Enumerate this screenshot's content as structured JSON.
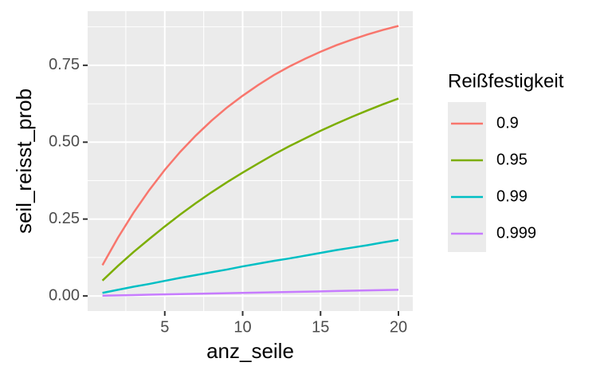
{
  "chart_data": {
    "type": "line",
    "x_label": "anz_seile",
    "y_label": "seil_reisst_prob",
    "x": [
      1,
      2,
      3,
      4,
      5,
      6,
      7,
      8,
      9,
      10,
      11,
      12,
      13,
      14,
      15,
      16,
      17,
      18,
      19,
      20
    ],
    "series": [
      {
        "name": "0.9",
        "color": "#F8766D",
        "values": [
          0.1,
          0.19,
          0.271,
          0.344,
          0.41,
          0.469,
          0.522,
          0.57,
          0.613,
          0.651,
          0.686,
          0.718,
          0.746,
          0.771,
          0.794,
          0.815,
          0.833,
          0.85,
          0.865,
          0.878
        ]
      },
      {
        "name": "0.95",
        "color": "#7CAE00",
        "values": [
          0.05,
          0.098,
          0.143,
          0.185,
          0.226,
          0.265,
          0.302,
          0.337,
          0.37,
          0.401,
          0.431,
          0.46,
          0.487,
          0.512,
          0.537,
          0.56,
          0.582,
          0.603,
          0.623,
          0.642
        ]
      },
      {
        "name": "0.99",
        "color": "#00BFC4",
        "values": [
          0.01,
          0.02,
          0.03,
          0.039,
          0.049,
          0.059,
          0.068,
          0.077,
          0.086,
          0.096,
          0.105,
          0.114,
          0.122,
          0.131,
          0.14,
          0.149,
          0.157,
          0.165,
          0.174,
          0.182
        ]
      },
      {
        "name": "0.999",
        "color": "#C77CFF",
        "values": [
          0.001,
          0.002,
          0.003,
          0.004,
          0.005,
          0.006,
          0.007,
          0.008,
          0.009,
          0.01,
          0.011,
          0.012,
          0.013,
          0.014,
          0.015,
          0.016,
          0.017,
          0.018,
          0.019,
          0.02
        ]
      }
    ],
    "legend_title": "Reißfestigkeit",
    "legend_position": "right",
    "xlim": [
      0.05,
      20.92
    ],
    "xticks": [
      5,
      10,
      15,
      20
    ],
    "ylim": [
      -0.049,
      0.926
    ],
    "yticks": [
      {
        "value": 0,
        "label": "0.00"
      },
      {
        "value": 0.25,
        "label": "0.25"
      },
      {
        "value": 0.5,
        "label": "0.50"
      },
      {
        "value": 0.75,
        "label": "0.75"
      }
    ],
    "grid": true
  }
}
